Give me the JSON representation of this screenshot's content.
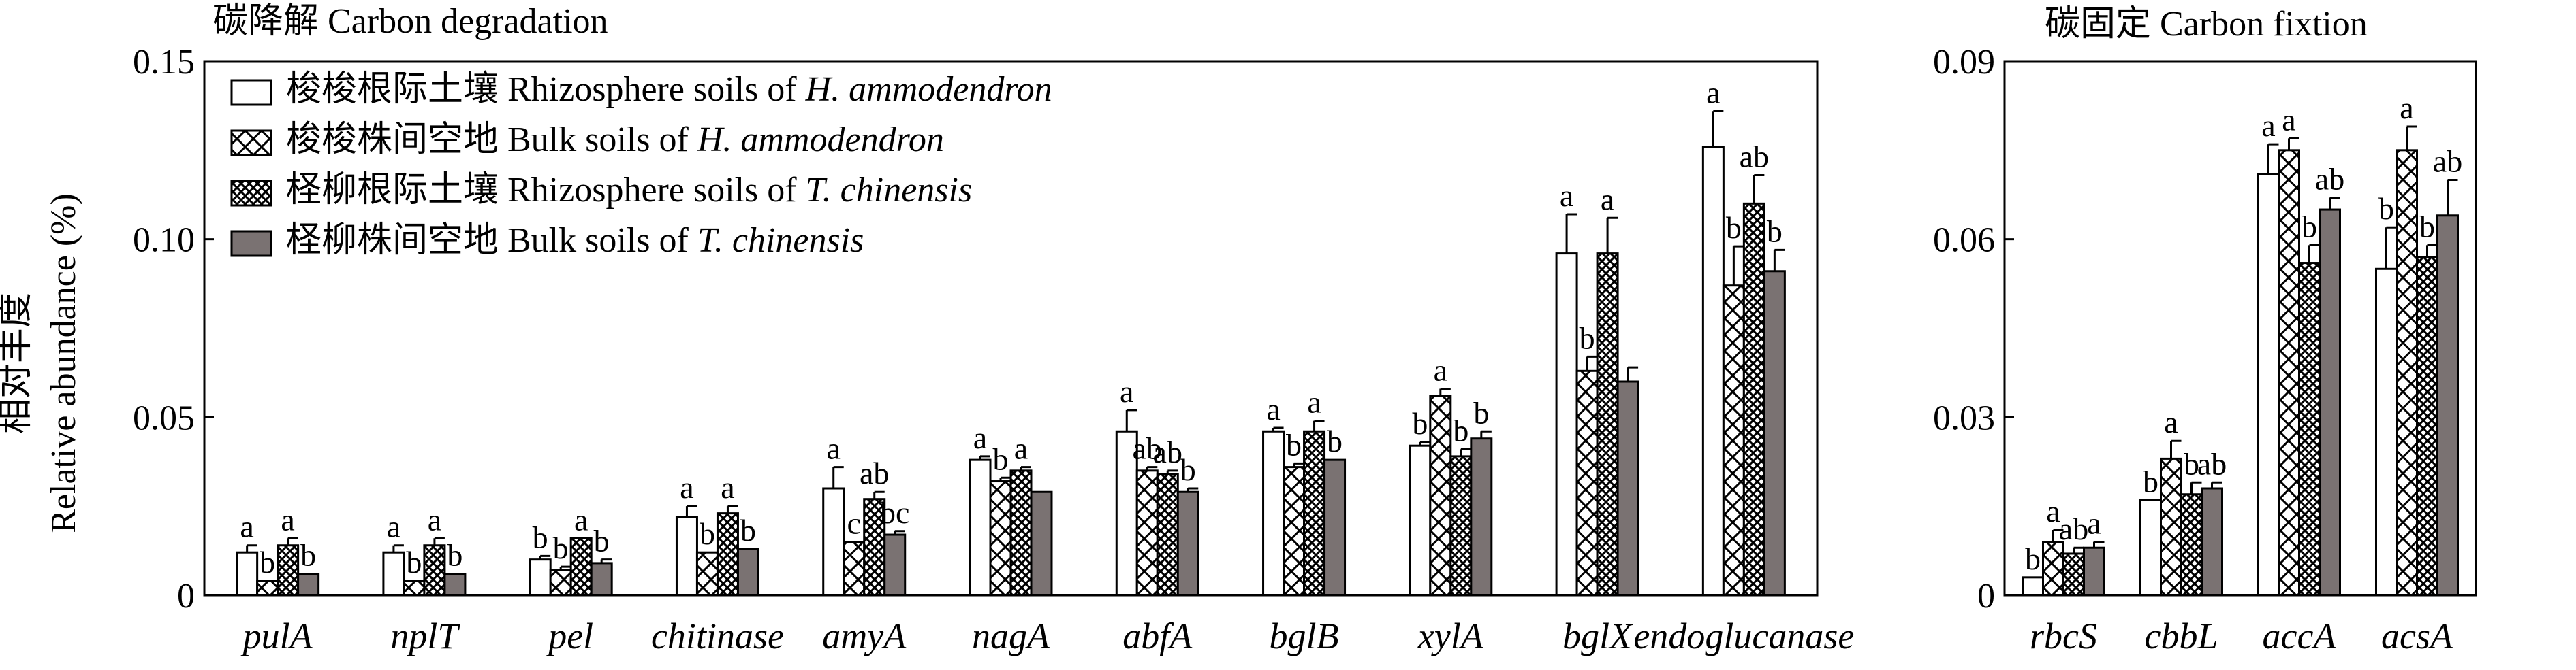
{
  "chart_data": [
    {
      "type": "bar",
      "title": "碳降解 Carbon degradation",
      "ylabel_cn": "相对丰度",
      "ylabel_en": "Relative abundance (%)",
      "ylim": [
        0,
        0.15
      ],
      "yticks": [
        "0",
        "0.05",
        "0.10",
        "0.15"
      ],
      "ytick_values": [
        0,
        0.05,
        0.1,
        0.15
      ],
      "categories": [
        "pulA",
        "nplT",
        "pel",
        "chitinase",
        "amyA",
        "nagA",
        "abfA",
        "bglB",
        "xylA",
        "bglX",
        "endoglucanase"
      ],
      "legend_placement": "top-left",
      "series": [
        {
          "name": "梭梭根际土壤 Rhizosphere soils of H. ammodendron",
          "fill": "open",
          "values": [
            0.012,
            0.012,
            0.01,
            0.022,
            0.03,
            0.038,
            0.046,
            0.046,
            0.042,
            0.096,
            0.126
          ],
          "errors": [
            0.002,
            0.002,
            0.001,
            0.003,
            0.006,
            0.001,
            0.006,
            0.001,
            0.001,
            0.011,
            0.01
          ],
          "letters": [
            "a",
            "a",
            "b",
            "a",
            "a",
            "a",
            "a",
            "a",
            "b",
            "a",
            "a"
          ]
        },
        {
          "name": "梭梭株间空地 Bulk soils of H. ammodendron",
          "fill": "cross-hatch",
          "values": [
            0.004,
            0.004,
            0.007,
            0.012,
            0.015,
            0.032,
            0.035,
            0.036,
            0.056,
            0.063,
            0.087
          ],
          "errors": [
            0.0,
            0.0,
            0.001,
            0.0,
            0.0,
            0.001,
            0.001,
            0.001,
            0.002,
            0.004,
            0.011
          ],
          "letters": [
            "b",
            "b",
            "b",
            "b",
            "c",
            "b",
            "ab",
            "b",
            "a",
            "b",
            "b"
          ]
        },
        {
          "name": "柽柳根际土壤 Rhizosphere soils of T. chinensis",
          "fill": "dense-cross-hatch",
          "values": [
            0.014,
            0.014,
            0.016,
            0.023,
            0.027,
            0.035,
            0.034,
            0.046,
            0.039,
            0.096,
            0.11
          ],
          "errors": [
            0.002,
            0.002,
            0.0,
            0.002,
            0.002,
            0.001,
            0.001,
            0.003,
            0.002,
            0.01,
            0.008
          ],
          "letters": [
            "a",
            "a",
            "a",
            "a",
            "ab",
            "a",
            "ab",
            "a",
            "b",
            "a",
            "ab"
          ]
        },
        {
          "name": "柽柳株间空地 Bulk soils of T. chinensis",
          "fill": "gray",
          "values": [
            0.006,
            0.006,
            0.009,
            0.013,
            0.017,
            0.029,
            0.029,
            0.038,
            0.044,
            0.06,
            0.091
          ],
          "errors": [
            0.0,
            0.0,
            0.001,
            0.0,
            0.001,
            0.0,
            0.001,
            0.0,
            0.002,
            0.004,
            0.006
          ],
          "letters": [
            "b",
            "b",
            "b",
            "b",
            "bc",
            "",
            "b",
            "b",
            "b",
            "",
            "b"
          ]
        }
      ]
    },
    {
      "type": "bar",
      "title": "碳固定 Carbon fixtion",
      "ylim": [
        0,
        0.09
      ],
      "yticks": [
        "0",
        "0.03",
        "0.06",
        "0.09"
      ],
      "ytick_values": [
        0,
        0.03,
        0.06,
        0.09
      ],
      "categories": [
        "rbcS",
        "cbbL",
        "accA",
        "acsA"
      ],
      "series": [
        {
          "name": "梭梭根际土壤 Rhizosphere soils of H. ammodendron",
          "fill": "open",
          "values": [
            0.003,
            0.016,
            0.071,
            0.055
          ],
          "errors": [
            0.0,
            0.0,
            0.005,
            0.007
          ],
          "letters": [
            "b",
            "b",
            "a",
            "b"
          ]
        },
        {
          "name": "梭梭株间空地 Bulk soils of H. ammodendron",
          "fill": "cross-hatch",
          "values": [
            0.009,
            0.023,
            0.075,
            0.075
          ],
          "errors": [
            0.002,
            0.003,
            0.002,
            0.004
          ],
          "letters": [
            "a",
            "a",
            "a",
            "a"
          ]
        },
        {
          "name": "柽柳根际土壤 Rhizosphere soils of T. chinensis",
          "fill": "dense-cross-hatch",
          "values": [
            0.007,
            0.017,
            0.056,
            0.057
          ],
          "errors": [
            0.001,
            0.002,
            0.003,
            0.002
          ],
          "letters": [
            "ab",
            "b",
            "b",
            "b"
          ]
        },
        {
          "name": "柽柳株间空地 Bulk soils of T. chinensis",
          "fill": "gray",
          "values": [
            0.008,
            0.018,
            0.065,
            0.064
          ],
          "errors": [
            0.001,
            0.001,
            0.002,
            0.006
          ],
          "letters": [
            "a",
            "ab",
            "ab",
            "ab"
          ]
        }
      ]
    }
  ],
  "legend": [
    {
      "cn": "梭梭根际土壤",
      "en": "Rhizosphere soils of ",
      "species": "H. ammodendron",
      "fill": "open"
    },
    {
      "cn": "梭梭株间空地",
      "en": "Bulk soils of ",
      "species": "H. ammodendron",
      "fill": "cross-hatch"
    },
    {
      "cn": "柽柳根际土壤",
      "en": "Rhizosphere soils of ",
      "species": "T. chinensis",
      "fill": "dense-cross-hatch"
    },
    {
      "cn": "柽柳株间空地",
      "en": "Bulk soils of ",
      "species": "T. chinensis",
      "fill": "gray"
    }
  ],
  "colors": {
    "gray_fill": "#7a7272",
    "axis": "#000000",
    "background": "#ffffff"
  }
}
